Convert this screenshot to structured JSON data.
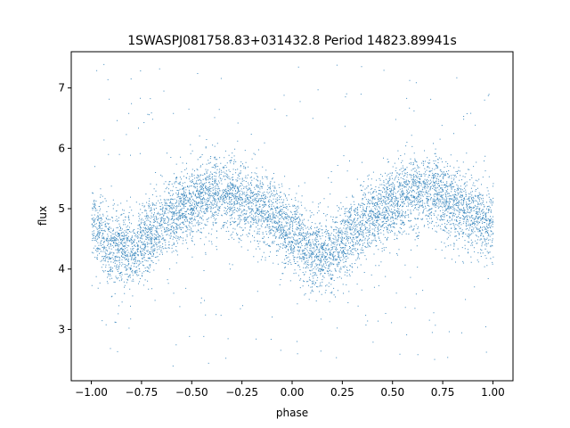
{
  "chart_data": {
    "type": "scatter",
    "title": "1SWASPJ081758.83+031432.8 Period 14823.89941s",
    "xlabel": "phase",
    "ylabel": "flux",
    "xlim": [
      -1.1,
      1.1
    ],
    "ylim": [
      2.15,
      7.6
    ],
    "xticks": [
      -1.0,
      -0.75,
      -0.5,
      -0.25,
      0.0,
      0.25,
      0.5,
      0.75,
      1.0
    ],
    "xtick_labels": [
      "−1.00",
      "−0.75",
      "−0.50",
      "−0.25",
      "0.00",
      "0.25",
      "0.50",
      "0.75",
      "1.00"
    ],
    "yticks": [
      3,
      4,
      5,
      6,
      7
    ],
    "ytick_labels": [
      "3",
      "4",
      "5",
      "6",
      "7"
    ],
    "grid": false,
    "marker_color": "#1f77b4",
    "x_range": [
      -1.0,
      1.0
    ],
    "light_curve": {
      "phase": [
        -1.0,
        -0.9,
        -0.8,
        -0.7,
        -0.6,
        -0.5,
        -0.4,
        -0.3,
        -0.2,
        -0.1,
        0.0,
        0.1,
        0.2,
        0.3,
        0.4,
        0.5,
        0.6,
        0.7,
        0.8,
        0.9,
        1.0
      ],
      "flux": [
        4.75,
        4.35,
        4.3,
        4.6,
        4.9,
        5.1,
        5.25,
        5.25,
        5.1,
        4.9,
        4.6,
        4.25,
        4.3,
        4.6,
        4.9,
        5.1,
        5.25,
        5.25,
        5.1,
        4.9,
        4.75
      ],
      "scatter": 0.3
    },
    "outlier_flux_range": [
      2.4,
      7.4
    ]
  }
}
